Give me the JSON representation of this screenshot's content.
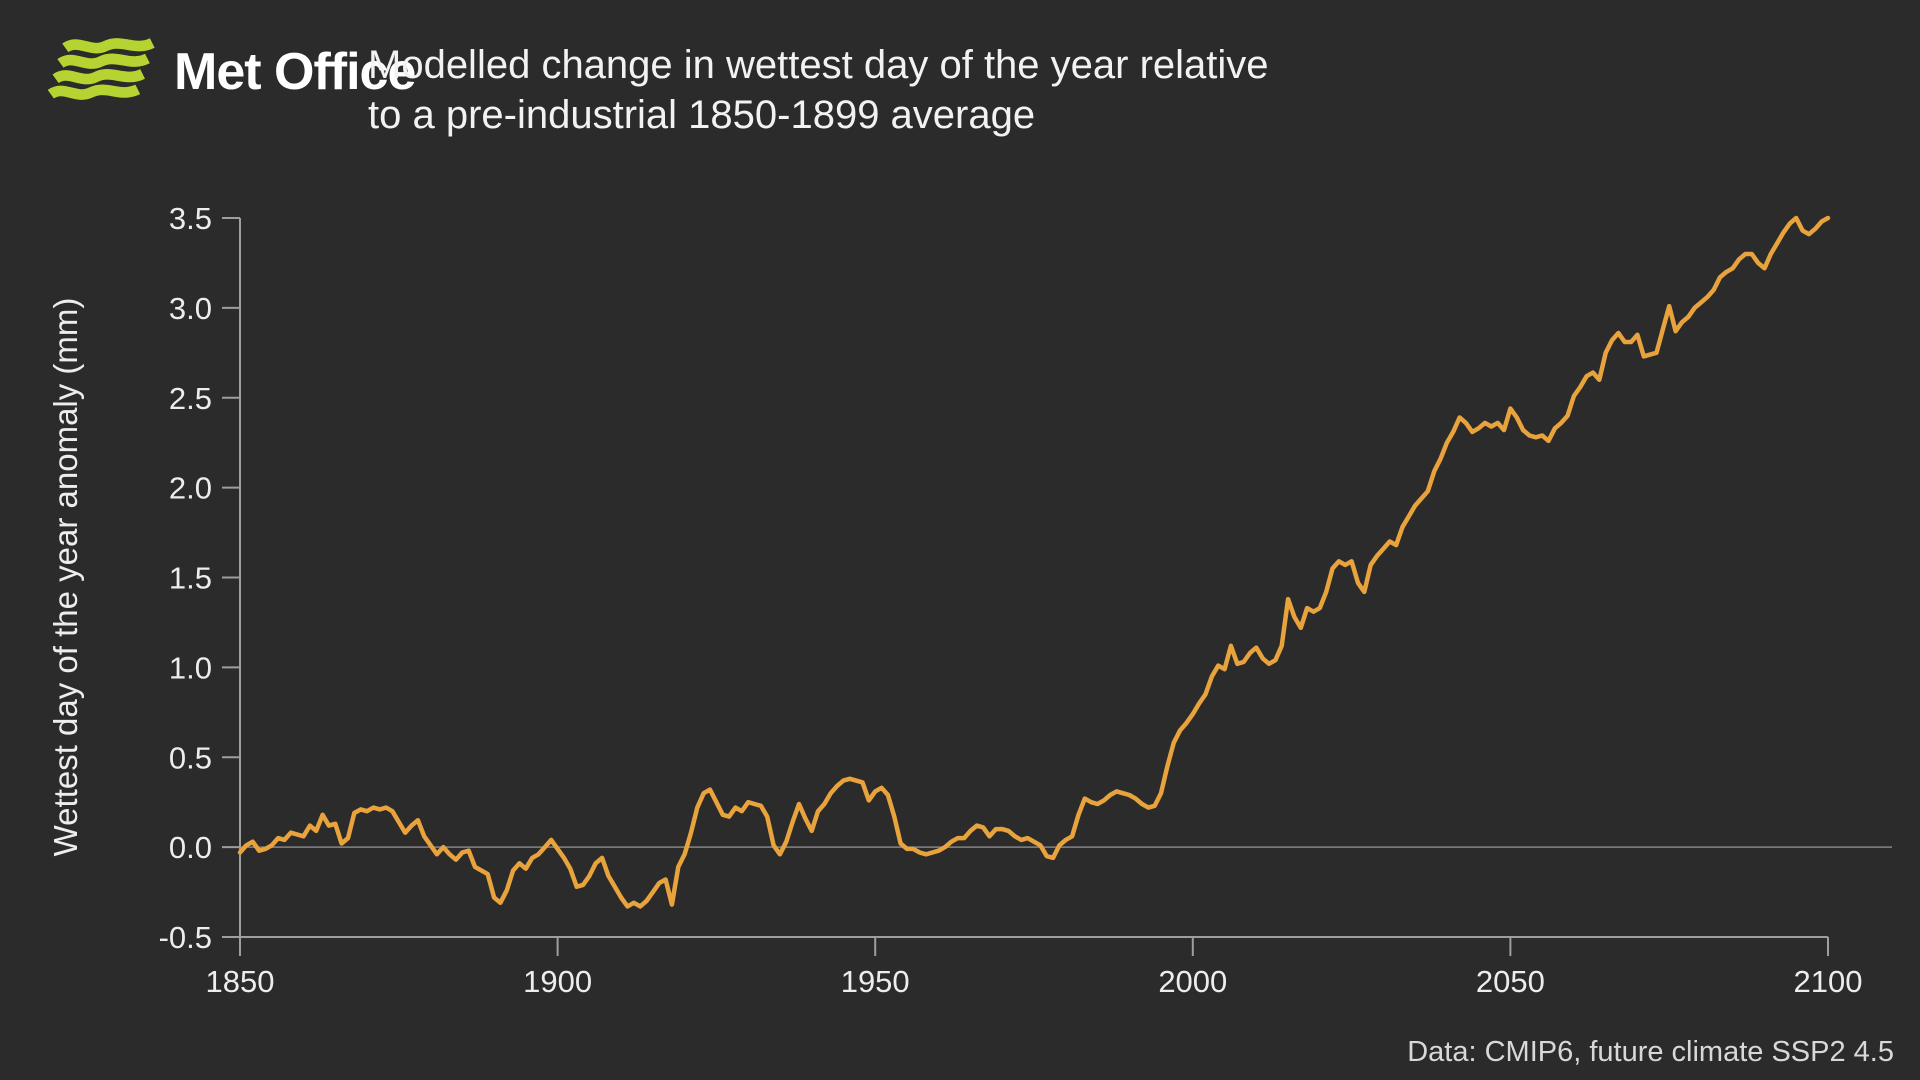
{
  "header": {
    "logo_text": "Met Office",
    "title_line1": "Modelled change in wettest day of the year relative",
    "title_line2": "to a pre-industrial 1850-1899 average"
  },
  "footer": {
    "source": "Data: CMIP6, future climate SSP2 4.5"
  },
  "colors": {
    "background": "#2b2b2b",
    "line": "#e8a33d",
    "axis": "#9e9e9e",
    "tick_label": "#ededed",
    "zero_line": "#858585",
    "logo_green": "#b5d331",
    "title_text": "#f2f2f2",
    "footer_text": "#d8d8d8"
  },
  "chart_data": {
    "type": "line",
    "title": "Modelled change in wettest day of the year relative to a pre-industrial 1850-1899 average",
    "xlabel": "",
    "ylabel": "Wettest day of the year anomaly (mm)",
    "xlim": [
      1850,
      2100
    ],
    "ylim": [
      -0.5,
      3.5
    ],
    "xticks": [
      1850,
      1900,
      1950,
      2000,
      2050,
      2100
    ],
    "yticks": [
      3.5,
      3.0,
      2.5,
      2.0,
      1.5,
      1.0,
      0.5,
      0.0,
      -0.5
    ],
    "grid": "zero-line-only",
    "legend": "none",
    "series": [
      {
        "x_start": 1850,
        "x_step": 1,
        "values": [
          -0.03,
          0.01,
          0.03,
          -0.02,
          -0.01,
          0.01,
          0.05,
          0.04,
          0.08,
          0.07,
          0.06,
          0.12,
          0.09,
          0.18,
          0.12,
          0.13,
          0.02,
          0.05,
          0.19,
          0.21,
          0.2,
          0.22,
          0.21,
          0.22,
          0.2,
          0.14,
          0.08,
          0.12,
          0.15,
          0.06,
          0.01,
          -0.04,
          0.0,
          -0.04,
          -0.07,
          -0.03,
          -0.02,
          -0.11,
          -0.13,
          -0.15,
          -0.28,
          -0.31,
          -0.24,
          -0.13,
          -0.09,
          -0.12,
          -0.06,
          -0.04,
          0.0,
          0.04,
          -0.01,
          -0.06,
          -0.12,
          -0.22,
          -0.21,
          -0.16,
          -0.09,
          -0.06,
          -0.16,
          -0.22,
          -0.28,
          -0.33,
          -0.31,
          -0.33,
          -0.3,
          -0.25,
          -0.2,
          -0.18,
          -0.32,
          -0.11,
          -0.04,
          0.08,
          0.22,
          0.3,
          0.32,
          0.25,
          0.18,
          0.17,
          0.22,
          0.2,
          0.25,
          0.24,
          0.23,
          0.17,
          0.01,
          -0.04,
          0.03,
          0.14,
          0.24,
          0.16,
          0.09,
          0.2,
          0.24,
          0.3,
          0.34,
          0.37,
          0.38,
          0.37,
          0.36,
          0.26,
          0.31,
          0.33,
          0.29,
          0.17,
          0.02,
          -0.01,
          -0.01,
          -0.03,
          -0.04,
          -0.03,
          -0.02,
          0.0,
          0.03,
          0.05,
          0.05,
          0.09,
          0.12,
          0.11,
          0.06,
          0.1,
          0.1,
          0.09,
          0.06,
          0.04,
          0.05,
          0.03,
          0.01,
          -0.05,
          -0.06,
          0.01,
          0.04,
          0.06,
          0.18,
          0.27,
          0.25,
          0.24,
          0.26,
          0.29,
          0.31,
          0.3,
          0.29,
          0.27,
          0.24,
          0.22,
          0.23,
          0.3,
          0.45,
          0.58,
          0.65,
          0.69,
          0.74,
          0.8,
          0.85,
          0.95,
          1.01,
          0.99,
          1.12,
          1.02,
          1.03,
          1.08,
          1.11,
          1.05,
          1.02,
          1.04,
          1.12,
          1.38,
          1.28,
          1.22,
          1.33,
          1.31,
          1.33,
          1.42,
          1.55,
          1.59,
          1.57,
          1.59,
          1.47,
          1.42,
          1.57,
          1.62,
          1.66,
          1.7,
          1.68,
          1.78,
          1.84,
          1.9,
          1.94,
          1.98,
          2.09,
          2.16,
          2.25,
          2.31,
          2.39,
          2.36,
          2.31,
          2.33,
          2.36,
          2.34,
          2.36,
          2.32,
          2.44,
          2.39,
          2.32,
          2.29,
          2.28,
          2.29,
          2.26,
          2.33,
          2.36,
          2.4,
          2.51,
          2.56,
          2.62,
          2.64,
          2.6,
          2.75,
          2.82,
          2.86,
          2.81,
          2.81,
          2.85,
          2.73,
          2.74,
          2.75,
          2.88,
          3.01,
          2.87,
          2.92,
          2.95,
          3.0,
          3.03,
          3.06,
          3.1,
          3.17,
          3.2,
          3.22,
          3.27,
          3.3,
          3.3,
          3.25,
          3.22,
          3.3,
          3.36,
          3.42,
          3.47,
          3.5,
          3.43,
          3.41,
          3.44,
          3.48,
          3.5
        ]
      }
    ]
  }
}
